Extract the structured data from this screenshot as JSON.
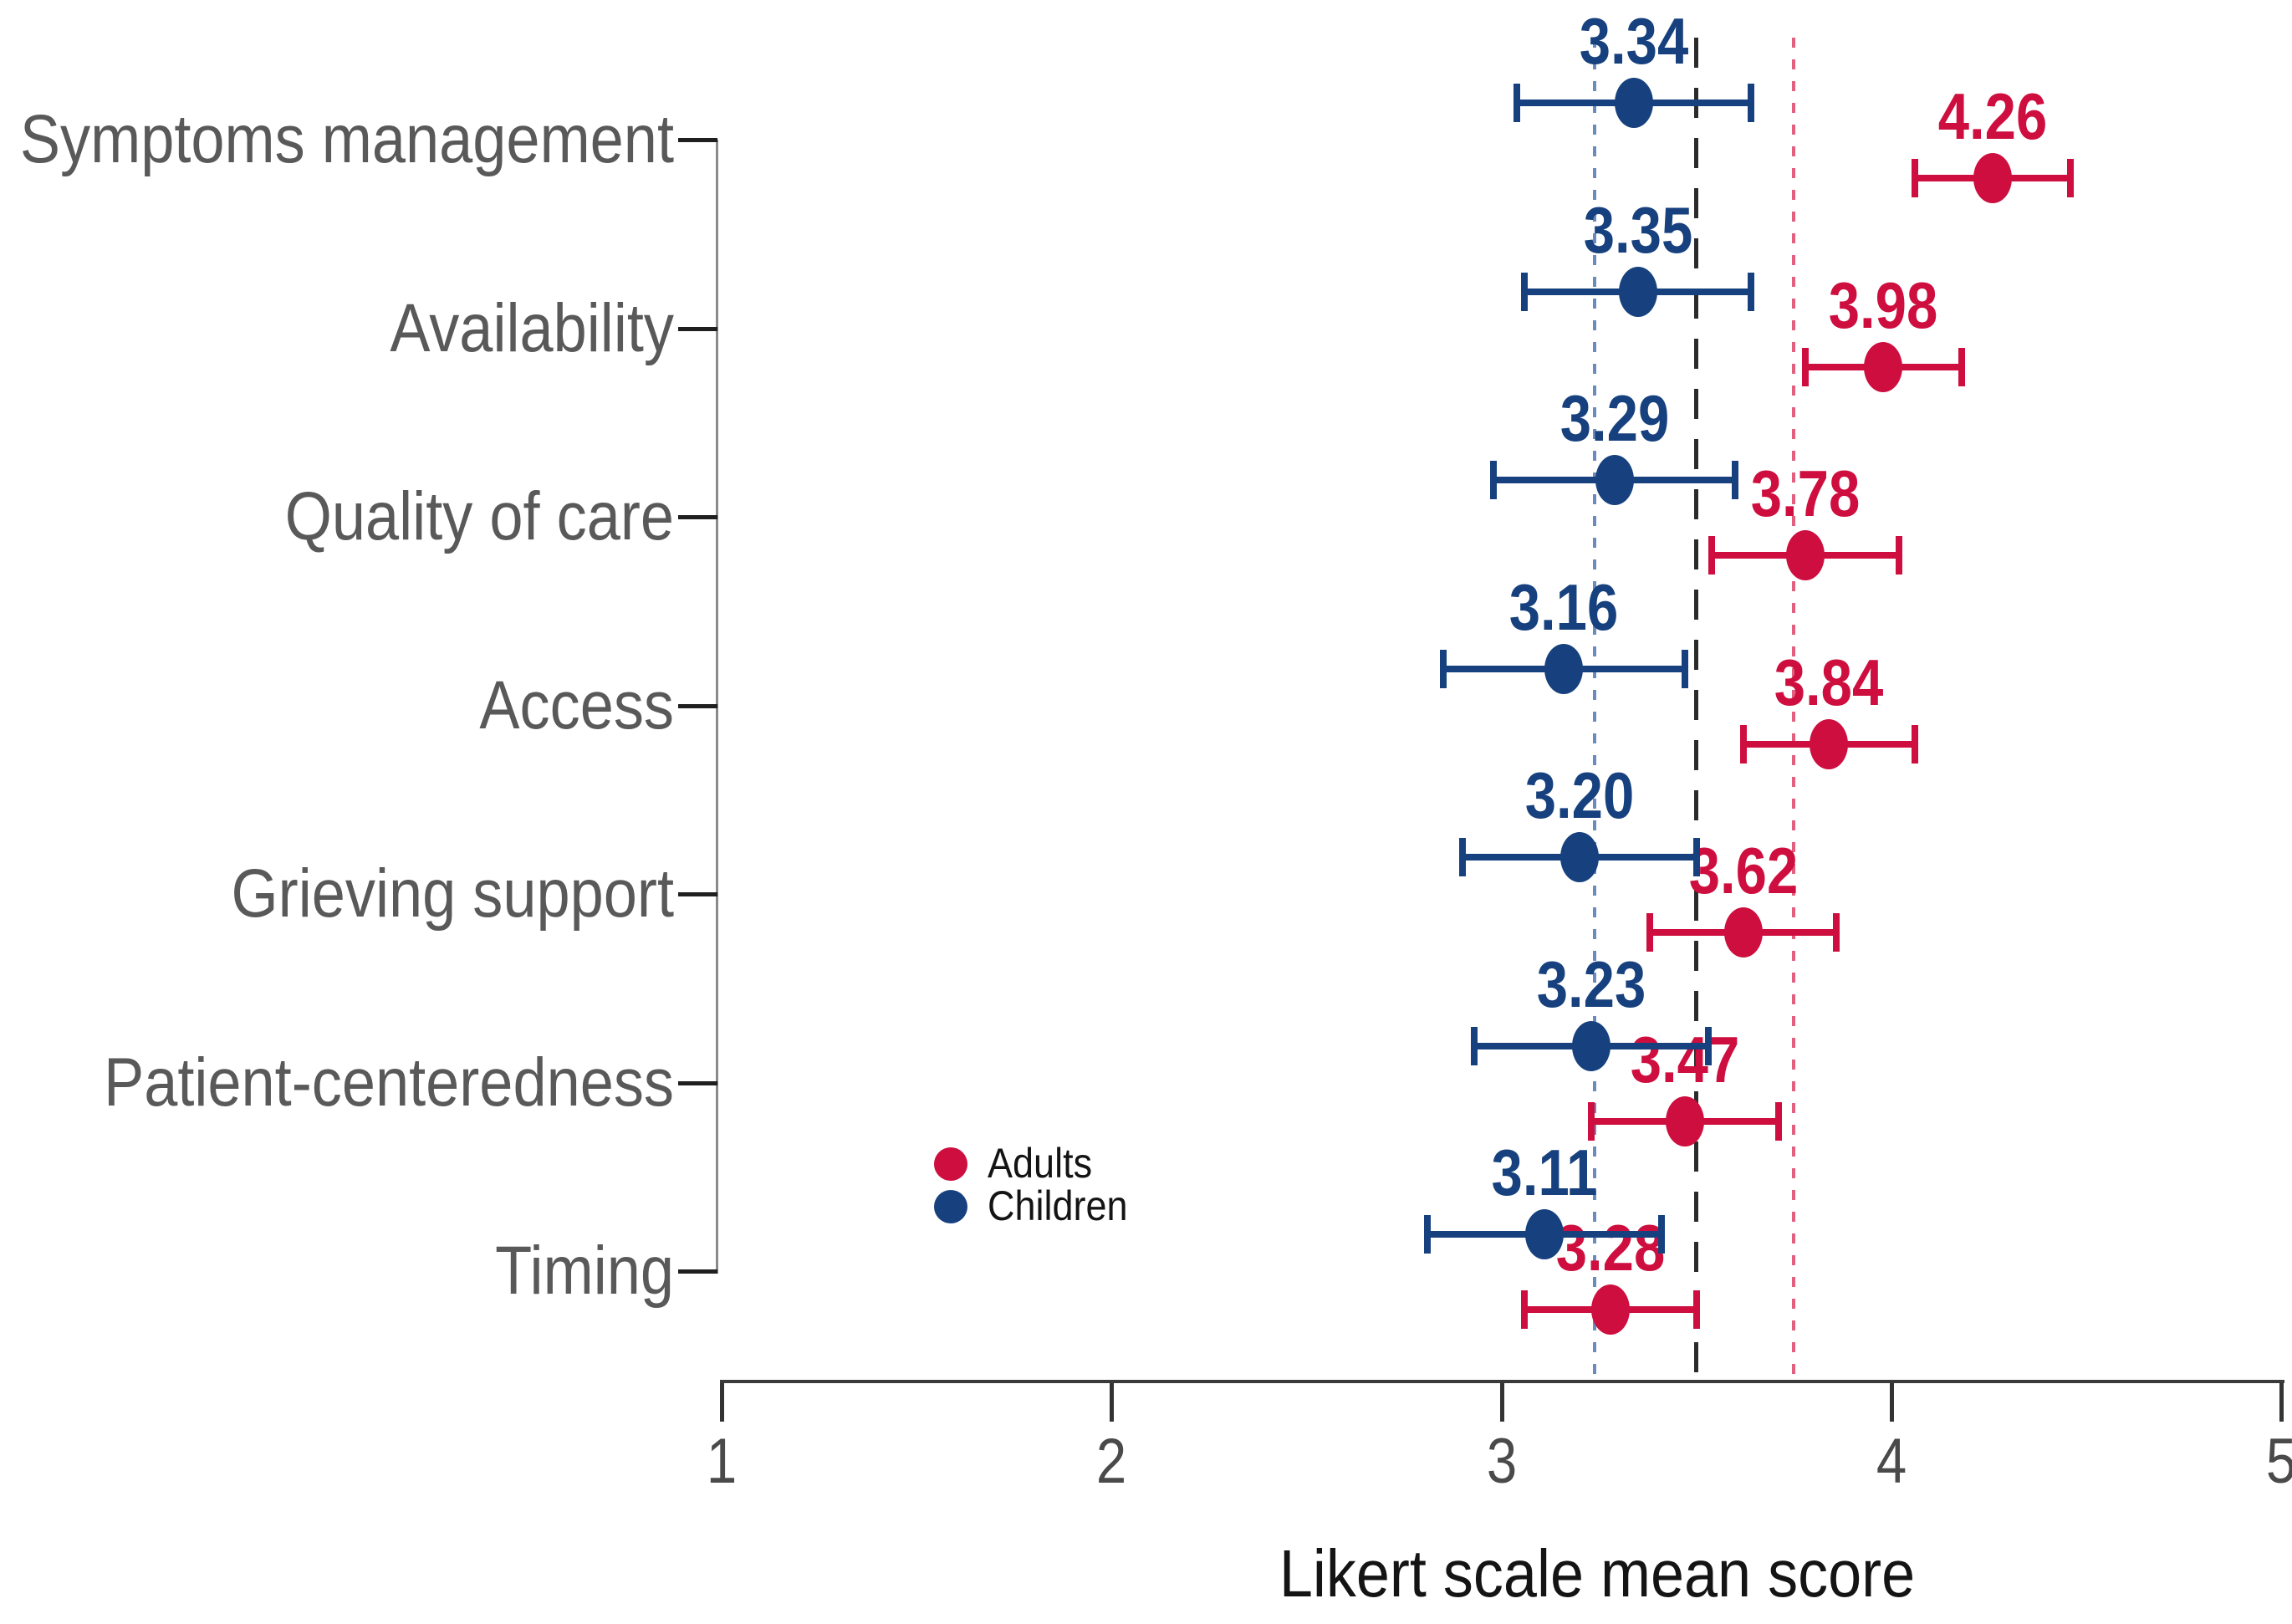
{
  "figure": {
    "background": "#ffffff",
    "axis_colors": {
      "y_axis_line": "#8a8a8a",
      "x_axis_line": "#3a3a3a",
      "tick_label": "#4a4a4a",
      "category_label": "#595959"
    }
  },
  "chart_data": {
    "type": "scatter",
    "subtype": "horizontal-dot-plot-with-error-bars",
    "xlabel": "Likert scale mean score",
    "xlim": [
      1,
      5
    ],
    "x_ticks": [
      "1",
      "2",
      "3",
      "4",
      "5"
    ],
    "grid": "off",
    "legend_position": "inside-left, beside Timing row",
    "categories": [
      "Symptoms management",
      "Availability",
      "Quality of care",
      "Access",
      "Grieving support",
      "Patient-centeredness",
      "Timing"
    ],
    "series": [
      {
        "name": "Adults",
        "color": "#CE0E3E",
        "values": [
          4.26,
          3.98,
          3.78,
          3.84,
          3.62,
          3.47,
          3.28
        ],
        "errors": [
          0.2,
          0.2,
          0.24,
          0.22,
          0.24,
          0.24,
          0.22
        ],
        "labels": [
          "4.26",
          "3.98",
          "3.78",
          "3.84",
          "3.62",
          "3.47",
          "3.28"
        ]
      },
      {
        "name": "Children",
        "color": "#17417E",
        "values": [
          3.34,
          3.35,
          3.29,
          3.16,
          3.2,
          3.23,
          3.11
        ],
        "errors": [
          0.3,
          0.29,
          0.31,
          0.31,
          0.3,
          0.3,
          0.3
        ],
        "labels": [
          "3.34",
          "3.35",
          "3.29",
          "3.16",
          "3.20",
          "3.23",
          "3.11"
        ]
      }
    ],
    "reference_lines": [
      {
        "value": 3.24,
        "style": "dotted",
        "color": "#6A8CBD"
      },
      {
        "value": 3.5,
        "style": "dashed",
        "color": "#2B2B2B"
      },
      {
        "value": 3.75,
        "style": "dotted",
        "color": "#E25F7E"
      }
    ]
  }
}
